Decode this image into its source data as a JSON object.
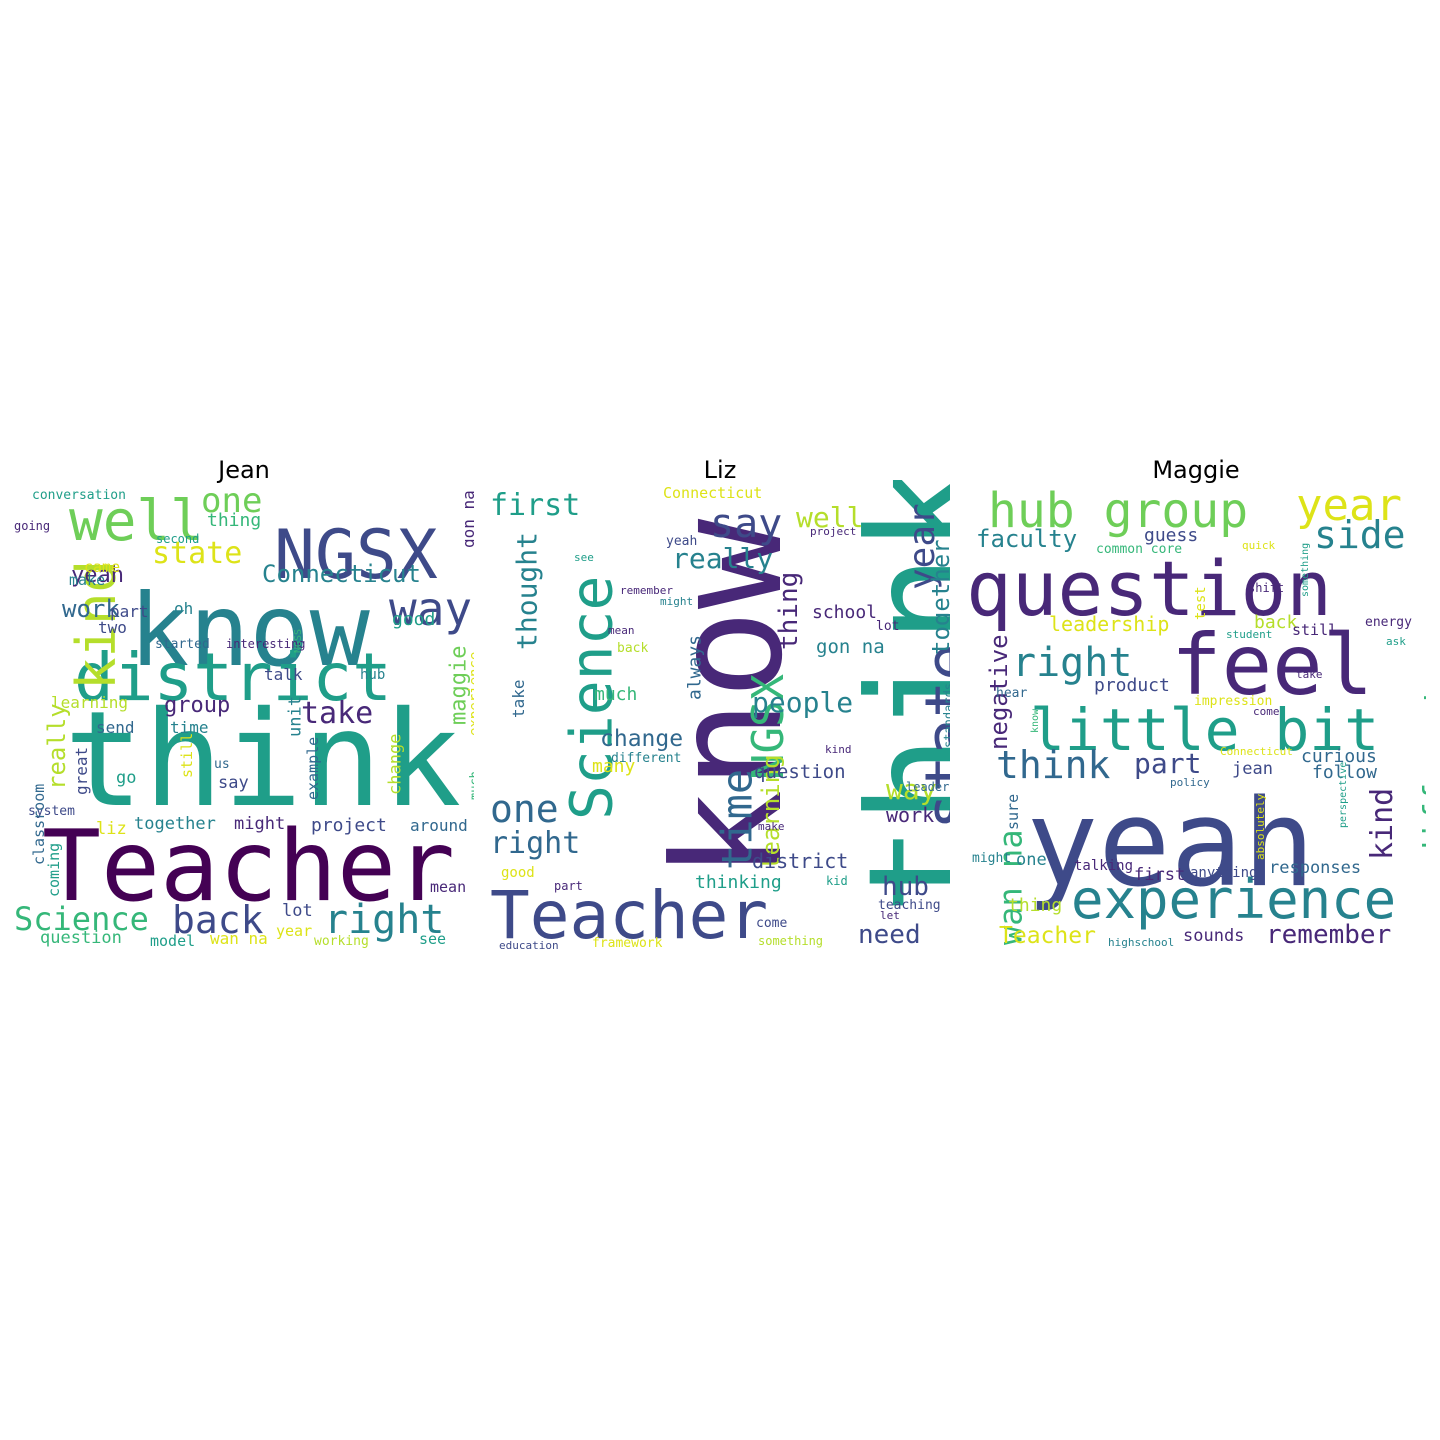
{
  "figure": {
    "panels": [
      {
        "title": "Jean"
      },
      {
        "title": "Liz"
      },
      {
        "title": "Maggie"
      }
    ]
  },
  "palette": [
    "#440154",
    "#482878",
    "#3e4a89",
    "#31688e",
    "#26828e",
    "#1f9e89",
    "#35b779",
    "#6ece58",
    "#b5de2b",
    "#dde318"
  ],
  "words": {
    "jean": [
      {
        "text": "think",
        "c": 5
      },
      {
        "text": "Teacher",
        "c": 0
      },
      {
        "text": "know",
        "c": 4
      },
      {
        "text": "district",
        "c": 5
      },
      {
        "text": "NGSX",
        "c": 2
      },
      {
        "text": "well",
        "c": 7
      },
      {
        "text": "kind",
        "c": 8
      },
      {
        "text": "one",
        "c": 7
      },
      {
        "text": "state",
        "c": 9
      },
      {
        "text": "Connecticut",
        "c": 4
      },
      {
        "text": "way",
        "c": 2
      },
      {
        "text": "yeah",
        "c": 1
      },
      {
        "text": "work",
        "c": 3
      },
      {
        "text": "take",
        "c": 1
      },
      {
        "text": "group",
        "c": 1
      },
      {
        "text": "back",
        "c": 2
      },
      {
        "text": "right",
        "c": 4
      },
      {
        "text": "Science",
        "c": 6
      },
      {
        "text": "maggie",
        "c": 7
      },
      {
        "text": "really",
        "c": 8
      },
      {
        "text": "gon na",
        "c": 1
      },
      {
        "text": "thing",
        "c": 6
      },
      {
        "text": "good",
        "c": 5
      },
      {
        "text": "came",
        "c": 9
      },
      {
        "text": "make",
        "c": 4
      },
      {
        "text": "part",
        "c": 2
      },
      {
        "text": "two",
        "c": 2
      },
      {
        "text": "oh",
        "c": 4
      },
      {
        "text": "started",
        "c": 3
      },
      {
        "text": "interesting",
        "c": 1
      },
      {
        "text": "NGSS",
        "c": 6
      },
      {
        "text": "talk",
        "c": 2
      },
      {
        "text": "hub",
        "c": 4
      },
      {
        "text": "learning",
        "c": 8
      },
      {
        "text": "send",
        "c": 3
      },
      {
        "text": "time",
        "c": 4
      },
      {
        "text": "unit",
        "c": 4
      },
      {
        "text": "example",
        "c": 3
      },
      {
        "text": "experience",
        "c": 9
      },
      {
        "text": "change",
        "c": 8
      },
      {
        "text": "say",
        "c": 2
      },
      {
        "text": "go",
        "c": 5
      },
      {
        "text": "us",
        "c": 3
      },
      {
        "text": "still",
        "c": 9
      },
      {
        "text": "great",
        "c": 2
      },
      {
        "text": "system",
        "c": 2
      },
      {
        "text": "classroom",
        "c": 3
      },
      {
        "text": "coming",
        "c": 5
      },
      {
        "text": "much",
        "c": 6
      },
      {
        "text": "liz",
        "c": 9
      },
      {
        "text": "together",
        "c": 4
      },
      {
        "text": "might",
        "c": 1
      },
      {
        "text": "project",
        "c": 2
      },
      {
        "text": "around",
        "c": 3
      },
      {
        "text": "mean",
        "c": 1
      },
      {
        "text": "lot",
        "c": 2
      },
      {
        "text": "year",
        "c": 9
      },
      {
        "text": "question",
        "c": 6
      },
      {
        "text": "model",
        "c": 5
      },
      {
        "text": "wan na",
        "c": 9
      },
      {
        "text": "working",
        "c": 8
      },
      {
        "text": "see",
        "c": 5
      },
      {
        "text": "conversation",
        "c": 5
      },
      {
        "text": "going",
        "c": 1
      },
      {
        "text": "second",
        "c": 5
      }
    ],
    "liz": [
      {
        "text": "know",
        "c": 1
      },
      {
        "text": "think",
        "c": 5
      },
      {
        "text": "Teacher",
        "c": 2
      },
      {
        "text": "Science",
        "c": 5
      },
      {
        "text": "state",
        "c": 2
      },
      {
        "text": "time",
        "c": 3
      },
      {
        "text": "NGSX",
        "c": 6
      },
      {
        "text": "one",
        "c": 3
      },
      {
        "text": "year",
        "c": 2
      },
      {
        "text": "say",
        "c": 2
      },
      {
        "text": "first",
        "c": 5
      },
      {
        "text": "thought",
        "c": 4
      },
      {
        "text": "right",
        "c": 3
      },
      {
        "text": "well",
        "c": 8
      },
      {
        "text": "together",
        "c": 4
      },
      {
        "text": "really",
        "c": 4
      },
      {
        "text": "people",
        "c": 4
      },
      {
        "text": "change",
        "c": 3
      },
      {
        "text": "learning",
        "c": 8
      },
      {
        "text": "hub",
        "c": 2
      },
      {
        "text": "way",
        "c": 8
      },
      {
        "text": "need",
        "c": 2
      },
      {
        "text": "thing",
        "c": 1
      },
      {
        "text": "school",
        "c": 1
      },
      {
        "text": "gon na",
        "c": 4
      },
      {
        "text": "question",
        "c": 2
      },
      {
        "text": "district",
        "c": 2
      },
      {
        "text": "work",
        "c": 1
      },
      {
        "text": "thinking",
        "c": 5
      },
      {
        "text": "always",
        "c": 3
      },
      {
        "text": "much",
        "c": 6
      },
      {
        "text": "many",
        "c": 9
      },
      {
        "text": "take",
        "c": 3
      },
      {
        "text": "Connecticut",
        "c": 9
      },
      {
        "text": "yeah",
        "c": 2
      },
      {
        "text": "project",
        "c": 1
      },
      {
        "text": "see",
        "c": 5
      },
      {
        "text": "remember",
        "c": 1
      },
      {
        "text": "might",
        "c": 4
      },
      {
        "text": "mean",
        "c": 1
      },
      {
        "text": "back",
        "c": 8
      },
      {
        "text": "different",
        "c": 4
      },
      {
        "text": "lot",
        "c": 1
      },
      {
        "text": "standards",
        "c": 4
      },
      {
        "text": "leader",
        "c": 3
      },
      {
        "text": "kind",
        "c": 1
      },
      {
        "text": "make",
        "c": 1
      },
      {
        "text": "kid",
        "c": 5
      },
      {
        "text": "teaching",
        "c": 2
      },
      {
        "text": "let",
        "c": 1
      },
      {
        "text": "good",
        "c": 9
      },
      {
        "text": "part",
        "c": 1
      },
      {
        "text": "come",
        "c": 2
      },
      {
        "text": "education",
        "c": 2
      },
      {
        "text": "framework",
        "c": 9
      },
      {
        "text": "something",
        "c": 8
      }
    ],
    "maggie": [
      {
        "text": "yeah",
        "c": 2
      },
      {
        "text": "question",
        "c": 1
      },
      {
        "text": "feel",
        "c": 1
      },
      {
        "text": "hub group",
        "c": 7
      },
      {
        "text": "year",
        "c": 9
      },
      {
        "text": "little bit",
        "c": 5
      },
      {
        "text": "experience",
        "c": 4
      },
      {
        "text": "right",
        "c": 4
      },
      {
        "text": "side",
        "c": 4
      },
      {
        "text": "different",
        "c": 6
      },
      {
        "text": "think",
        "c": 3
      },
      {
        "text": "part",
        "c": 2
      },
      {
        "text": "kind",
        "c": 1
      },
      {
        "text": "wan na",
        "c": 6
      },
      {
        "text": "negative",
        "c": 1
      },
      {
        "text": "remember",
        "c": 1
      },
      {
        "text": "faculty",
        "c": 4
      },
      {
        "text": "guess",
        "c": 2
      },
      {
        "text": "leadership",
        "c": 9
      },
      {
        "text": "Teacher",
        "c": 9
      },
      {
        "text": "product",
        "c": 2
      },
      {
        "text": "curious",
        "c": 3
      },
      {
        "text": "follow",
        "c": 3
      },
      {
        "text": "back",
        "c": 8
      },
      {
        "text": "still",
        "c": 1
      },
      {
        "text": "jean",
        "c": 2
      },
      {
        "text": "responses",
        "c": 3
      },
      {
        "text": "first",
        "c": 1
      },
      {
        "text": "sounds",
        "c": 1
      },
      {
        "text": "thing",
        "c": 8
      },
      {
        "text": "one",
        "c": 4
      },
      {
        "text": "sure",
        "c": 3
      },
      {
        "text": "common core",
        "c": 6
      },
      {
        "text": "test",
        "c": 9
      },
      {
        "text": "quick",
        "c": 9
      },
      {
        "text": "something",
        "c": 5
      },
      {
        "text": "shift",
        "c": 1
      },
      {
        "text": "student",
        "c": 5
      },
      {
        "text": "energy",
        "c": 1
      },
      {
        "text": "ask",
        "c": 5
      },
      {
        "text": "hear",
        "c": 3
      },
      {
        "text": "know",
        "c": 6
      },
      {
        "text": "impression",
        "c": 9
      },
      {
        "text": "come",
        "c": 1
      },
      {
        "text": "take",
        "c": 1
      },
      {
        "text": "Connecticut",
        "c": 9
      },
      {
        "text": "policy",
        "c": 3
      },
      {
        "text": "absolutely",
        "c": 9
      },
      {
        "text": "perspective",
        "c": 5
      },
      {
        "text": "might",
        "c": 4
      },
      {
        "text": "talking",
        "c": 1
      },
      {
        "text": "anything",
        "c": 2
      },
      {
        "text": "highschool",
        "c": 4
      }
    ]
  }
}
